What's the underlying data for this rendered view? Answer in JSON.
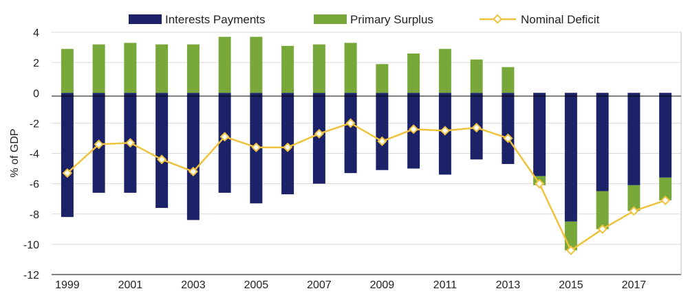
{
  "chart_data": {
    "type": "bar",
    "ylabel": "% of GDP",
    "ylim": [
      -12,
      4
    ],
    "y_ticks": [
      "4",
      "2",
      "0",
      "-2",
      "-4",
      "-6",
      "-8",
      "-10",
      "-12"
    ],
    "y_tick_values": [
      4,
      2,
      0,
      -2,
      -4,
      -6,
      -8,
      -10,
      -12
    ],
    "x_tick_labels": [
      "1999",
      "2001",
      "2003",
      "2005",
      "2007",
      "2009",
      "2011",
      "2013",
      "2015",
      "2017"
    ],
    "grid": "horizontal",
    "legend_position": "top",
    "categories": [
      1999,
      2000,
      2001,
      2002,
      2003,
      2004,
      2005,
      2006,
      2007,
      2008,
      2009,
      2010,
      2011,
      2012,
      2013,
      2014,
      2015,
      2016,
      2017,
      2018
    ],
    "series": [
      {
        "name": "Interests Payments",
        "kind": "bar",
        "color": "#1c2268",
        "values": [
          -8.2,
          -6.6,
          -6.6,
          -7.6,
          -8.4,
          -6.6,
          -7.3,
          -6.7,
          -6.0,
          -5.3,
          -5.1,
          -5.0,
          -5.4,
          -4.4,
          -4.7,
          -5.5,
          -8.5,
          -6.5,
          -6.1,
          -5.6
        ]
      },
      {
        "name": "Primary Surplus",
        "kind": "bar",
        "color": "#78a83a",
        "values": [
          2.9,
          3.2,
          3.3,
          3.2,
          3.2,
          3.7,
          3.7,
          3.1,
          3.2,
          3.3,
          1.9,
          2.6,
          2.9,
          2.2,
          1.7,
          -0.6,
          -1.9,
          -2.5,
          -1.7,
          -1.5
        ]
      },
      {
        "name": "Nominal Deficit",
        "kind": "line",
        "color": "#f0c23c",
        "values": [
          -5.3,
          -3.4,
          -3.3,
          -4.4,
          -5.2,
          -2.9,
          -3.6,
          -3.6,
          -2.7,
          -2.0,
          -3.2,
          -2.4,
          -2.5,
          -2.3,
          -3.0,
          -6.0,
          -10.4,
          -9.0,
          -7.8,
          -7.1
        ]
      }
    ]
  }
}
